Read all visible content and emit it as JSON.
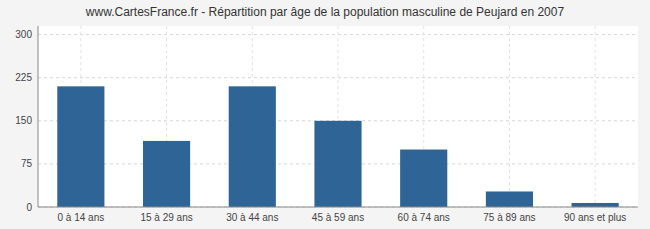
{
  "chart_data": {
    "type": "bar",
    "title": "www.CartesFrance.fr - Répartition par âge de la population masculine de Peujard en 2007",
    "categories": [
      "0 à 14 ans",
      "15 à 29 ans",
      "30 à 44 ans",
      "45 à 59 ans",
      "60 à 74 ans",
      "75 à 89 ans",
      "90 ans et plus"
    ],
    "values": [
      210,
      115,
      210,
      150,
      100,
      27,
      7
    ],
    "color": "#2e6496",
    "ylim": [
      0,
      315
    ],
    "yticks": [
      0,
      75,
      150,
      225,
      300
    ],
    "grid": true
  }
}
